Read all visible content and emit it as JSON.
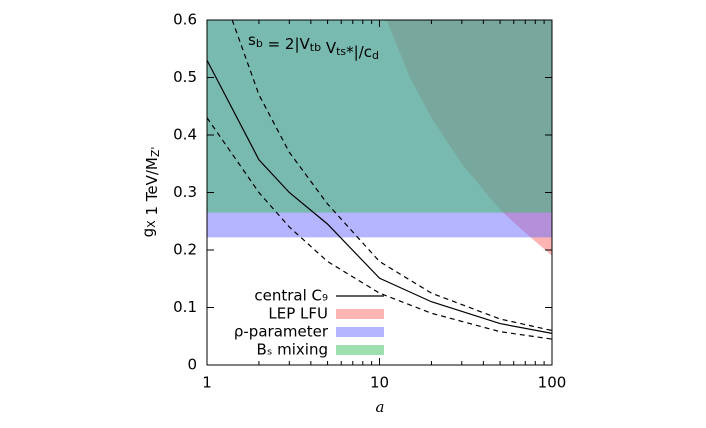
{
  "chart_data": {
    "type": "line",
    "xscale": "log",
    "xlim": [
      1,
      100
    ],
    "xticks": [
      1,
      10,
      100
    ],
    "xminorticks": [
      2,
      3,
      4,
      5,
      6,
      7,
      8,
      9,
      20,
      30,
      40,
      50,
      60,
      70,
      80,
      90
    ],
    "ylim": [
      0,
      0.6
    ],
    "yticks": [
      0,
      0.1,
      0.2,
      0.3,
      0.4,
      0.5,
      0.6
    ],
    "xlabel": "a",
    "ylabel": [
      {
        "t": "g"
      },
      {
        "sub": "X"
      },
      {
        "t": " 1 TeV/M"
      },
      {
        "sub": "Z'"
      }
    ],
    "annotation": [
      {
        "t": "s"
      },
      {
        "sub": "b"
      },
      {
        "t": " = 2|V"
      },
      {
        "sub": "tb"
      },
      {
        "t": " V"
      },
      {
        "sub": "ts"
      },
      {
        "t": "*|/c"
      },
      {
        "sub": "d"
      }
    ],
    "legend": "lower left",
    "series": [
      {
        "name": "central C₉",
        "color": "#000000",
        "style": "solid",
        "x": [
          1,
          2,
          3,
          5,
          10,
          20,
          50,
          100
        ],
        "values": [
          0.53,
          0.357,
          0.3,
          0.245,
          0.151,
          0.11,
          0.072,
          0.055
        ]
      },
      {
        "color": "#000000",
        "style": "dashed",
        "x": [
          1.4,
          2,
          3,
          5,
          10,
          20,
          50,
          100
        ],
        "values": [
          0.6,
          0.47,
          0.37,
          0.28,
          0.18,
          0.125,
          0.08,
          0.06
        ]
      },
      {
        "color": "#000000",
        "style": "dashed",
        "x": [
          1,
          2,
          3,
          5,
          10,
          20,
          50,
          100
        ],
        "values": [
          0.43,
          0.3,
          0.24,
          0.18,
          0.125,
          0.09,
          0.058,
          0.045
        ]
      },
      {
        "name": "LEP LFU",
        "color": "#ff6a6a",
        "style": "fill-above",
        "x": [
          11,
          15,
          20,
          30,
          50,
          70,
          100
        ],
        "values": [
          0.6,
          0.5,
          0.43,
          0.35,
          0.27,
          0.23,
          0.19
        ]
      },
      {
        "name": "ρ-parameter",
        "color": "#6a6aff",
        "style": "fill-above",
        "x": [
          1,
          100
        ],
        "values": [
          0.222,
          0.222
        ]
      },
      {
        "name": "Bₛ mixing",
        "color": "#3cc060",
        "style": "fill-above",
        "x": [
          1,
          100
        ],
        "values": [
          0.265,
          0.265
        ]
      }
    ]
  }
}
